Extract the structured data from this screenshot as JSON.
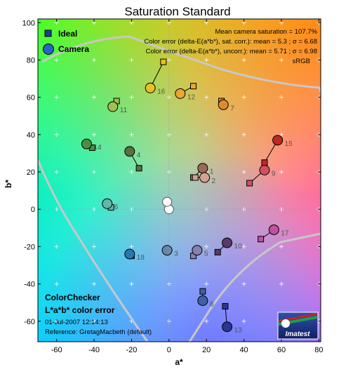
{
  "chart_data": {
    "type": "scatter",
    "title": "Saturation Standard",
    "xlabel": "a*",
    "ylabel": "b*",
    "xlim": [
      -70,
      81
    ],
    "ylim": [
      -71,
      102
    ],
    "xticks": [
      -60,
      -40,
      -20,
      0,
      20,
      40,
      60,
      80
    ],
    "yticks": [
      -60,
      -40,
      -20,
      0,
      20,
      40,
      60,
      80,
      100
    ],
    "grid": true,
    "legend_position": "top-left",
    "series": [
      {
        "name": "Ideal",
        "marker": "square"
      },
      {
        "name": "Camera",
        "marker": "circle"
      }
    ],
    "points": [
      {
        "id": "1",
        "ideal": [
          13,
          17
        ],
        "camera": [
          18,
          22
        ],
        "color": "#9a6a58"
      },
      {
        "id": "2",
        "ideal": [
          14,
          17
        ],
        "camera": [
          19,
          17
        ],
        "color": "#d4a090"
      },
      {
        "id": "3",
        "ideal": [
          -1,
          -22
        ],
        "camera": [
          -1,
          -22
        ],
        "color": "#6a88a8"
      },
      {
        "id": "4",
        "ideal": [
          -16,
          22
        ],
        "camera": [
          -21,
          31
        ],
        "color": "#5a7040"
      },
      {
        "id": "5",
        "ideal": [
          13,
          -25
        ],
        "camera": [
          15,
          -22
        ],
        "color": "#8880b0"
      },
      {
        "id": "6",
        "ideal": [
          -31,
          1
        ],
        "camera": [
          -33,
          3
        ],
        "color": "#60b8a8"
      },
      {
        "id": "7",
        "ideal": [
          28,
          58
        ],
        "camera": [
          29,
          56
        ],
        "color": "#e08a30"
      },
      {
        "id": "8",
        "ideal": [
          18,
          -44
        ],
        "camera": [
          18,
          -49
        ],
        "color": "#4060a8"
      },
      {
        "id": "9",
        "ideal": [
          43,
          14
        ],
        "camera": [
          51,
          21
        ],
        "color": "#d05060"
      },
      {
        "id": "10",
        "ideal": [
          26,
          -23
        ],
        "camera": [
          31,
          -18
        ],
        "color": "#5a3a6a"
      },
      {
        "id": "11",
        "ideal": [
          -28,
          58
        ],
        "camera": [
          -30,
          55
        ],
        "color": "#a0c050"
      },
      {
        "id": "12",
        "ideal": [
          13,
          66
        ],
        "camera": [
          6,
          62
        ],
        "color": "#e8a830"
      },
      {
        "id": "13",
        "ideal": [
          30,
          -52
        ],
        "camera": [
          31,
          -63
        ],
        "color": "#283890"
      },
      {
        "id": "14",
        "ideal": [
          -41,
          33
        ],
        "camera": [
          -44,
          35
        ],
        "color": "#4a9040"
      },
      {
        "id": "15",
        "ideal": [
          51,
          25
        ],
        "camera": [
          58,
          37
        ],
        "color": "#c02828"
      },
      {
        "id": "16",
        "ideal": [
          -3,
          79
        ],
        "camera": [
          -10,
          65
        ],
        "color": "#e8c020"
      },
      {
        "id": "17",
        "ideal": [
          49,
          -16
        ],
        "camera": [
          56,
          -11
        ],
        "color": "#c050a0"
      },
      {
        "id": "18",
        "ideal": [
          -20,
          -25
        ],
        "camera": [
          -21,
          -24
        ],
        "color": "#2878b0"
      }
    ],
    "neutral_points": [
      [
        0,
        0
      ],
      [
        -1,
        4
      ]
    ]
  },
  "legend": {
    "ideal_label": "Ideal",
    "camera_label": "Camera"
  },
  "info": {
    "line1": "Mean camera saturation = 107.7%",
    "line2": "Color error (delta-E(a*b*), sat. corr.):  mean = 5.3 ;  σ = 6.68",
    "line3": "Color error (delta-E(a*b*), uncorr.):  mean = 5.71 ;  σ = 6.98",
    "line4": "sRGB"
  },
  "bottom_label": {
    "title1": "ColorChecker",
    "title2": "L*a*b* color error",
    "date": "01-Jul-2007 12:14:13",
    "reference": "Reference: GretagMacbeth (default)"
  },
  "logo": {
    "text": "Imatest"
  },
  "colors": {
    "boundary": "#c8c8c8",
    "ideal_edge": "#000000"
  }
}
